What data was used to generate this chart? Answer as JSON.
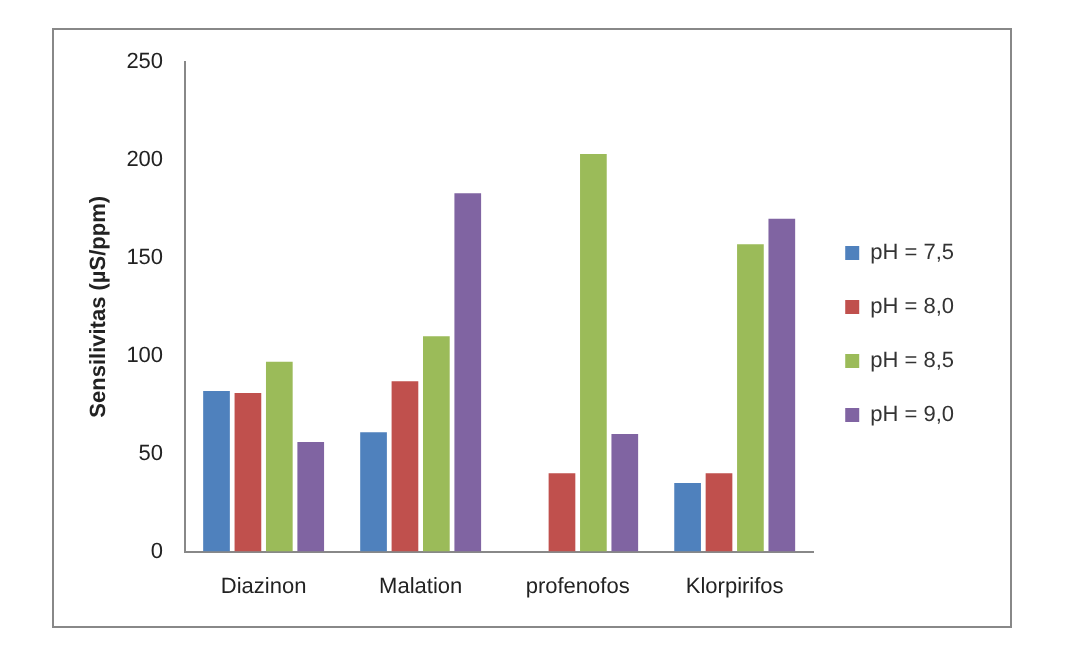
{
  "chart_data": {
    "type": "bar",
    "ylabel": "Sensilivitas (µS/ppm)",
    "categories": [
      "Diazinon",
      "Malation",
      "profenofos",
      "Klorpirifos"
    ],
    "series": [
      {
        "name": "pH = 7,5",
        "color": "#4f81bd",
        "values": [
          82,
          61,
          0,
          35
        ]
      },
      {
        "name": "pH = 8,0",
        "color": "#c0504d",
        "values": [
          81,
          87,
          40,
          40
        ]
      },
      {
        "name": "pH = 8,5",
        "color": "#9bbb59",
        "values": [
          97,
          110,
          203,
          157
        ]
      },
      {
        "name": "pH = 9,0",
        "color": "#8064a2",
        "values": [
          56,
          183,
          60,
          170
        ]
      }
    ],
    "ylim": [
      0,
      250
    ],
    "yticks": [
      0,
      50,
      100,
      150,
      200,
      250
    ],
    "grid": false,
    "legend": "right"
  }
}
